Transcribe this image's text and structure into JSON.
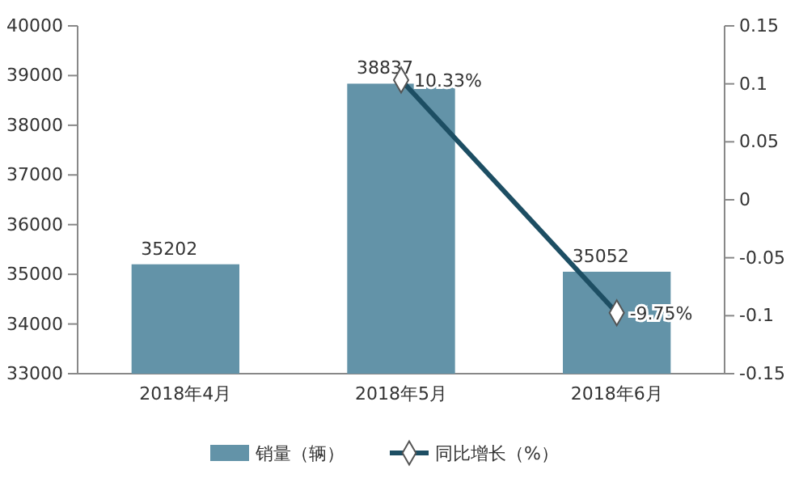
{
  "chart_data": {
    "type": "bar",
    "categories": [
      "2018年4月",
      "2018年5月",
      "2018年6月"
    ],
    "series": [
      {
        "name": "销量（辆）",
        "color": "#6393a8",
        "values": [
          35202,
          38837,
          35052
        ],
        "value_labels": [
          "35202",
          "38837",
          "35052"
        ]
      },
      {
        "name": "同比增长（%）",
        "type": "line",
        "axis": "y2",
        "color": "#1d4e63",
        "marker": "diamond",
        "values": [
          null,
          0.1033,
          -0.0975
        ],
        "value_labels": [
          null,
          "10.33%",
          "-9.75%"
        ]
      }
    ],
    "ylim": [
      33000,
      40000
    ],
    "yticks": [
      33000,
      34000,
      35000,
      36000,
      37000,
      38000,
      39000,
      40000
    ],
    "y2lim": [
      -0.15,
      0.15
    ],
    "y2ticks": [
      -0.15,
      -0.1,
      -0.05,
      0,
      0.05,
      0.1,
      0.15
    ],
    "grid": false,
    "legend": "bottom"
  }
}
